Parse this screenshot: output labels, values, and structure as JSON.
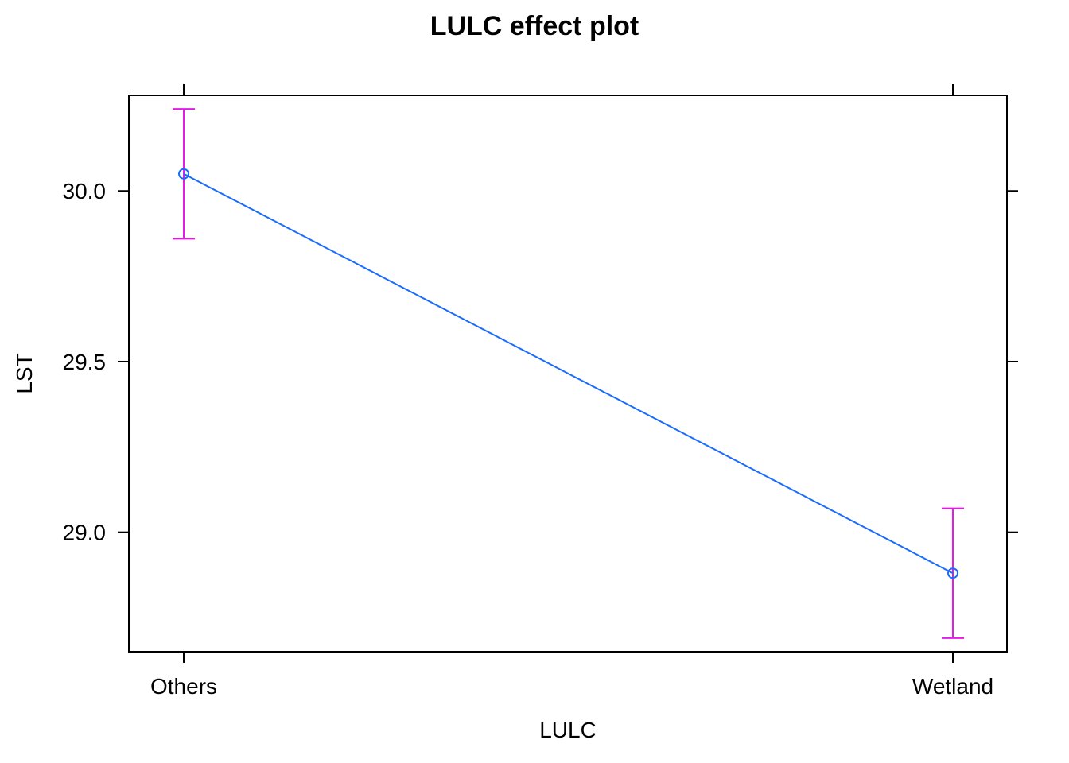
{
  "chart_data": {
    "type": "line",
    "title": "LULC effect plot",
    "xlabel": "LULC",
    "ylabel": "LST",
    "categories": [
      "Others",
      "Wetland"
    ],
    "series": [
      {
        "values": [
          30.05,
          28.88
        ],
        "lower": [
          29.86,
          28.69
        ],
        "upper": [
          30.24,
          29.07
        ]
      }
    ],
    "ylim": [
      28.65,
      30.28
    ],
    "yticks": [
      29.0,
      29.5,
      30.0
    ],
    "ytick_labels": [
      "29.0",
      "29.5",
      "30.0"
    ],
    "grid": false,
    "colors": {
      "line": "#1a6cff",
      "errorbar": "#e61ae6",
      "frame": "#000000"
    }
  }
}
